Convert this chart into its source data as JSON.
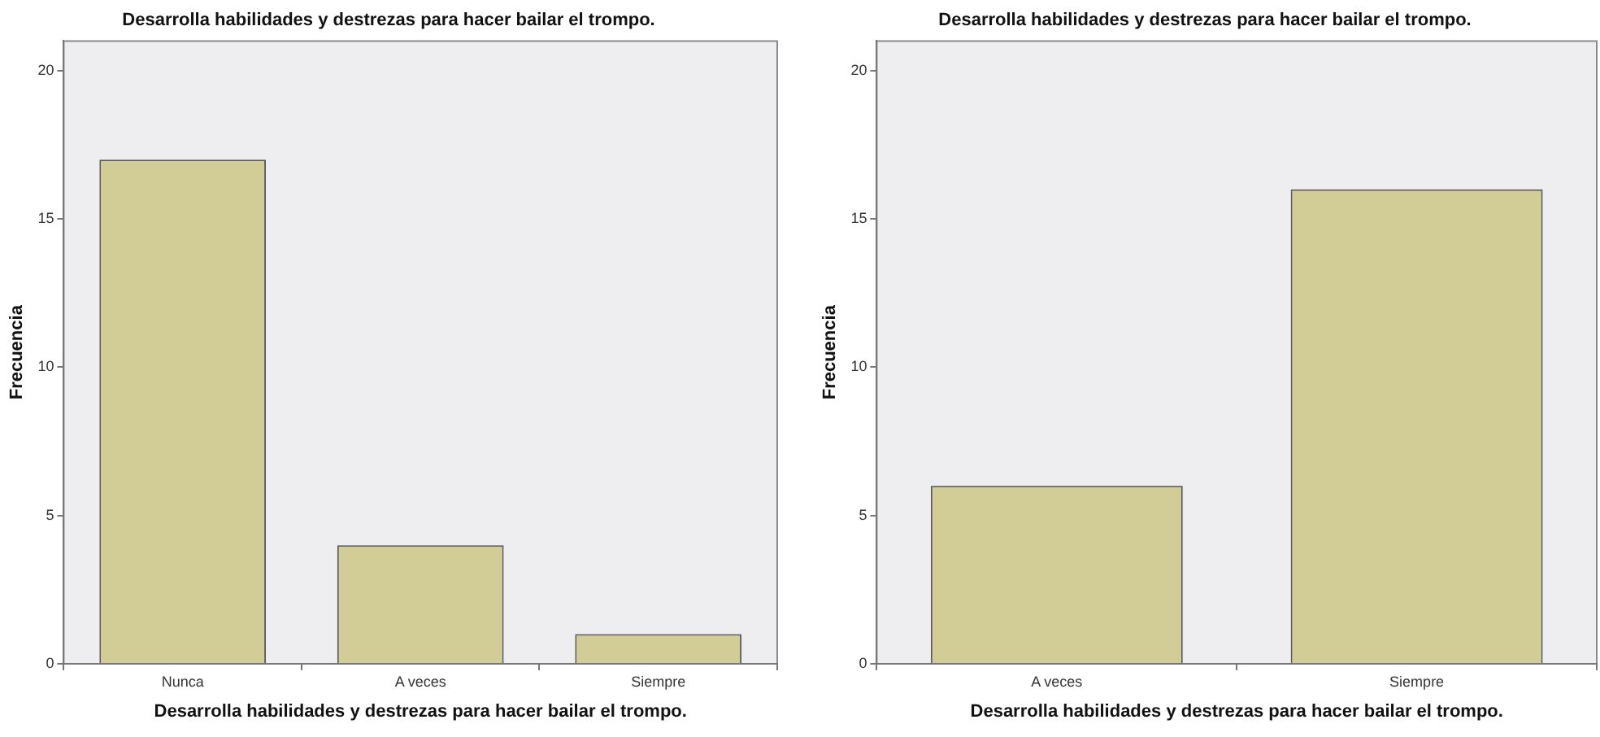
{
  "chart_data": [
    {
      "type": "bar",
      "title": "Desarrolla habilidades y destrezas para hacer bailar el trompo.",
      "xlabel": "Desarrolla habilidades y destrezas para hacer bailar el trompo.",
      "ylabel": "Frecuencia",
      "categories": [
        "Nunca",
        "A veces",
        "Siempre"
      ],
      "values": [
        17,
        4,
        1
      ],
      "color": "#d2cc96",
      "ylim": [
        0,
        21
      ],
      "yticks": [
        0,
        5,
        10,
        15,
        20
      ]
    },
    {
      "type": "bar",
      "title": "Desarrolla habilidades y destrezas para hacer bailar el trompo.",
      "xlabel": "Desarrolla habilidades y destrezas para hacer bailar el trompo.",
      "ylabel": "Frecuencia",
      "categories": [
        "A veces",
        "Siempre"
      ],
      "values": [
        6,
        16
      ],
      "color": "#d2cc96",
      "ylim": [
        0,
        21
      ],
      "yticks": [
        0,
        5,
        10,
        15,
        20
      ]
    }
  ]
}
